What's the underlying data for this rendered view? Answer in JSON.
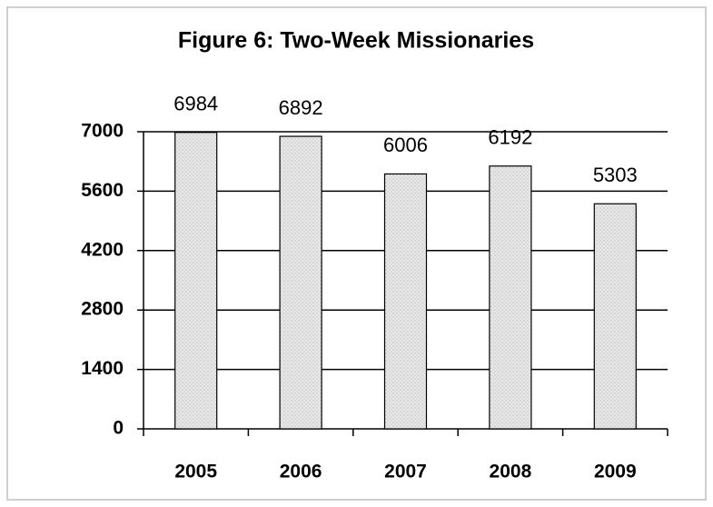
{
  "chart_data": {
    "type": "bar",
    "title": "Figure 6: Two-Week Missionaries",
    "categories": [
      "2005",
      "2006",
      "2007",
      "2008",
      "2009"
    ],
    "values": [
      6984,
      6892,
      6006,
      6192,
      5303
    ],
    "color": "#e4e4e4",
    "ylim": [
      0,
      7000
    ],
    "yticks": [
      0,
      1400,
      2800,
      4200,
      5600,
      7000
    ],
    "grid": true
  }
}
